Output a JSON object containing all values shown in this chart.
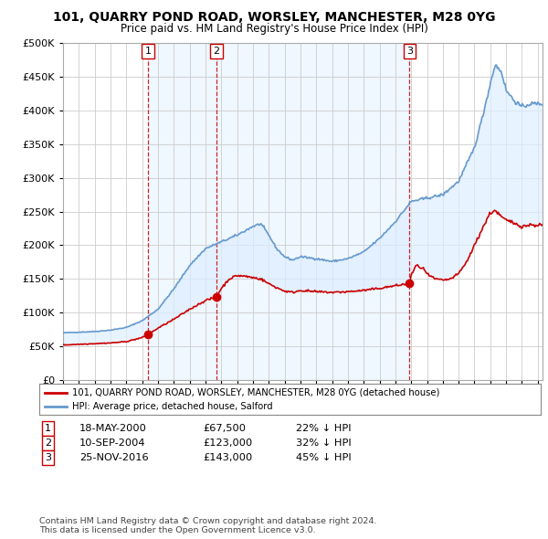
{
  "title": "101, QUARRY POND ROAD, WORSLEY, MANCHESTER, M28 0YG",
  "subtitle": "Price paid vs. HM Land Registry's House Price Index (HPI)",
  "legend_line1": "101, QUARRY POND ROAD, WORSLEY, MANCHESTER, M28 0YG (detached house)",
  "legend_line2": "HPI: Average price, detached house, Salford",
  "footer1": "Contains HM Land Registry data © Crown copyright and database right 2024.",
  "footer2": "This data is licensed under the Open Government Licence v3.0.",
  "sales": [
    {
      "label": "1",
      "date": "18-MAY-2000",
      "price": 67500,
      "year": 2000.38,
      "hpi_pct": "22% ↓ HPI"
    },
    {
      "label": "2",
      "date": "10-SEP-2004",
      "price": 123000,
      "year": 2004.69,
      "hpi_pct": "32% ↓ HPI"
    },
    {
      "label": "3",
      "date": "25-NOV-2016",
      "price": 143000,
      "year": 2016.9,
      "hpi_pct": "45% ↓ HPI"
    }
  ],
  "red_line_color": "#cc0000",
  "blue_line_color": "#6699cc",
  "fill_color": "#ddeeff",
  "dashed_line_color": "#cc0000",
  "background_color": "#ffffff",
  "grid_color": "#cccccc",
  "ylim": [
    0,
    500000
  ],
  "xlim_start": 1995.0,
  "xlim_end": 2025.3
}
